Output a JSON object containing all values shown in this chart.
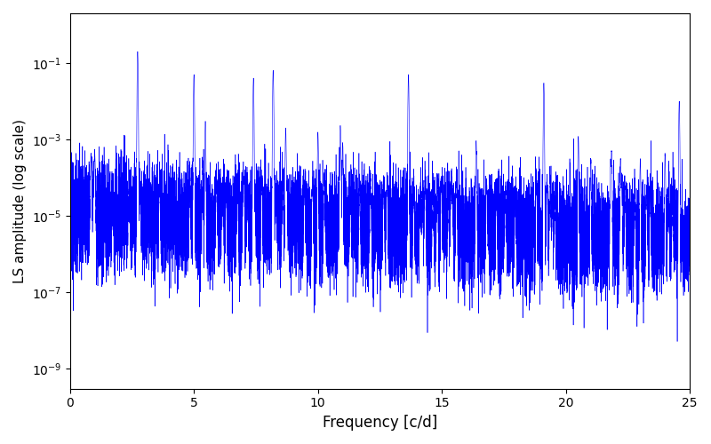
{
  "xlabel": "Frequency [c/d]",
  "ylabel": "LS amplitude (log scale)",
  "xlim": [
    0,
    25
  ],
  "ylim": [
    3e-10,
    2.0
  ],
  "color": "#0000ff",
  "linewidth": 0.4,
  "figsize": [
    8.0,
    5.0
  ],
  "dpi": 100,
  "seed": 1234,
  "n_points": 15000,
  "freq_max": 25.0,
  "background": "#ffffff",
  "noise_base": 1e-05,
  "noise_decay": 0.06,
  "noise_sigma": 1.6,
  "yticks_log": [
    -9,
    -7,
    -5,
    -3,
    -1
  ]
}
